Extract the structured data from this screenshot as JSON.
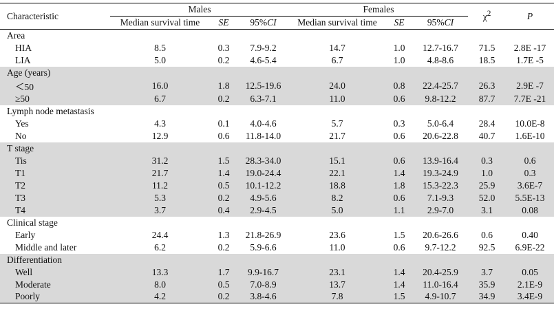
{
  "table": {
    "header": {
      "characteristic": "Characteristic",
      "males": "Males",
      "females": "Females",
      "chi": {
        "symbol": "χ",
        "sup": "2"
      },
      "p": "P",
      "males_columns": {
        "median": "Median survival time",
        "se": "SE",
        "ci": {
          "prefix": "95%",
          "italic": "CI"
        }
      },
      "females_columns": {
        "median": "Median survival time",
        "se": "SE",
        "ci": {
          "prefix": "95%",
          "italic": "CI"
        }
      }
    },
    "groups": [
      {
        "label": "Area",
        "shaded": false,
        "rows": [
          {
            "label": "HIA",
            "values": [
              "8.5",
              "0.3",
              "7.9-9.2",
              "14.7",
              "1.0",
              "12.7-16.7",
              "71.5",
              "2.8E -17"
            ]
          },
          {
            "label": "LIA",
            "values": [
              "5.0",
              "0.2",
              "4.6-5.4",
              "6.7",
              "1.0",
              "4.8-8.6",
              "18.5",
              "1.7E -5"
            ]
          }
        ]
      },
      {
        "label": "Age (years)",
        "shaded": true,
        "rows": [
          {
            "label": "＜50",
            "values": [
              "16.0",
              "1.8",
              "12.5-19.6",
              "24.0",
              "0.8",
              "22.4-25.7",
              "26.3",
              "2.9E -7"
            ]
          },
          {
            "label": "≥50",
            "values": [
              "6.7",
              "0.2",
              "6.3-7.1",
              "11.0",
              "0.6",
              "9.8-12.2",
              "87.7",
              "7.7E -21"
            ]
          }
        ]
      },
      {
        "label": "Lymph node metastasis",
        "shaded": false,
        "rows": [
          {
            "label": "Yes",
            "values": [
              "4.3",
              "0.1",
              "4.0-4.6",
              "5.7",
              "0.3",
              "5.0-6.4",
              "28.4",
              "10.0E-8"
            ]
          },
          {
            "label": "No",
            "values": [
              "12.9",
              "0.6",
              "11.8-14.0",
              "21.7",
              "0.6",
              "20.6-22.8",
              "40.7",
              "1.6E-10"
            ]
          }
        ]
      },
      {
        "label": "T stage",
        "shaded": true,
        "rows": [
          {
            "label": "Tis",
            "values": [
              "31.2",
              "1.5",
              "28.3-34.0",
              "15.1",
              "0.6",
              "13.9-16.4",
              "0.3",
              "0.6"
            ]
          },
          {
            "label": "T1",
            "values": [
              "21.7",
              "1.4",
              "19.0-24.4",
              "22.1",
              "1.4",
              "19.3-24.9",
              "1.0",
              "0.3"
            ]
          },
          {
            "label": "T2",
            "values": [
              "11.2",
              "0.5",
              "10.1-12.2",
              "18.8",
              "1.8",
              "15.3-22.3",
              "25.9",
              "3.6E-7"
            ]
          },
          {
            "label": "T3",
            "values": [
              "5.3",
              "0.2",
              "4.9-5.6",
              "8.2",
              "0.6",
              "7.1-9.3",
              "52.0",
              "5.5E-13"
            ]
          },
          {
            "label": "T4",
            "values": [
              "3.7",
              "0.4",
              "2.9-4.5",
              "5.0",
              "1.1",
              "2.9-7.0",
              "3.1",
              "0.08"
            ]
          }
        ]
      },
      {
        "label": "Clinical stage",
        "shaded": false,
        "rows": [
          {
            "label": "Early",
            "values": [
              "24.4",
              "1.3",
              "21.8-26.9",
              "23.6",
              "1.5",
              "20.6-26.6",
              "0.6",
              "0.40"
            ]
          },
          {
            "label": "Middle and later",
            "values": [
              "6.2",
              "0.2",
              "5.9-6.6",
              "11.0",
              "0.6",
              "9.7-12.2",
              "92.5",
              "6.9E-22"
            ]
          }
        ]
      },
      {
        "label": "Differentiation",
        "shaded": true,
        "rows": [
          {
            "label": "Well",
            "values": [
              "13.3",
              "1.7",
              "9.9-16.7",
              "23.1",
              "1.4",
              "20.4-25.9",
              "3.7",
              "0.05"
            ]
          },
          {
            "label": "Moderate",
            "values": [
              "8.0",
              "0.5",
              "7.0-8.9",
              "13.7",
              "1.4",
              "11.0-16.4",
              "35.9",
              "2.1E-9"
            ]
          },
          {
            "label": "Poorly",
            "values": [
              "4.2",
              "0.2",
              "3.8-4.6",
              "7.8",
              "1.5",
              "4.9-10.7",
              "34.9",
              "3.4E-9"
            ]
          }
        ]
      }
    ]
  }
}
